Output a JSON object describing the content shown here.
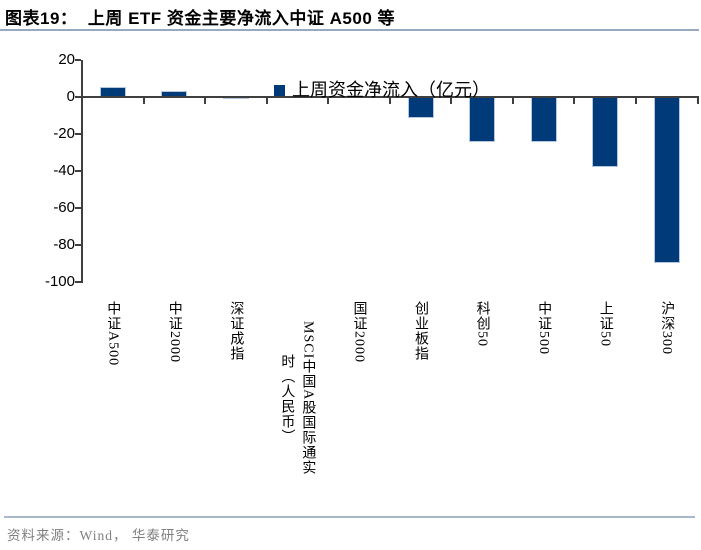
{
  "header": {
    "title": "图表19：  上周 ETF 资金主要净流入中证 A500 等"
  },
  "legend": {
    "label": "上周资金净流入（亿元）"
  },
  "footer": {
    "source": "资料来源：Wind， 华泰研究"
  },
  "colors": {
    "bar": "#003a78",
    "bar_border": "#b5c7e0",
    "axis": "#3f3f3f",
    "title_rule": "#95aabe",
    "source_rule": "#a6b8ca",
    "source_text": "#7f7f7f"
  },
  "chart_data": {
    "type": "bar",
    "title": "上周 ETF 资金主要净流入中证 A500 等",
    "legend_entries": [
      "上周资金净流入（亿元）"
    ],
    "legend_position": "inside-top",
    "grid": false,
    "xlabel": "",
    "ylabel": "亿元",
    "ylim": [
      -100,
      20
    ],
    "ytick_step": 20,
    "yticks": [
      20,
      0,
      -20,
      -40,
      -60,
      -80,
      -100
    ],
    "categories": [
      "中证A500",
      "中证2000",
      "深证成指",
      "MSCI中国A股国际通实时（人民币）",
      "国证2000",
      "创业板指",
      "科创50",
      "中证500",
      "上证50",
      "沪深300"
    ],
    "category_display_lines": [
      [
        "中证A500"
      ],
      [
        "中证2000"
      ],
      [
        "深证成指"
      ],
      [
        "MSCI中国A股国际通实",
        "时（人民币）"
      ],
      [
        "国证2000"
      ],
      [
        "创业板指"
      ],
      [
        "科创50"
      ],
      [
        "中证500"
      ],
      [
        "上证50"
      ],
      [
        "沪深300"
      ]
    ],
    "series": [
      {
        "name": "上周资金净流入（亿元）",
        "values": [
          5,
          3,
          -1,
          -0.5,
          -0.5,
          -11.5,
          -24.5,
          -24.5,
          -38,
          -89.5
        ]
      }
    ]
  }
}
